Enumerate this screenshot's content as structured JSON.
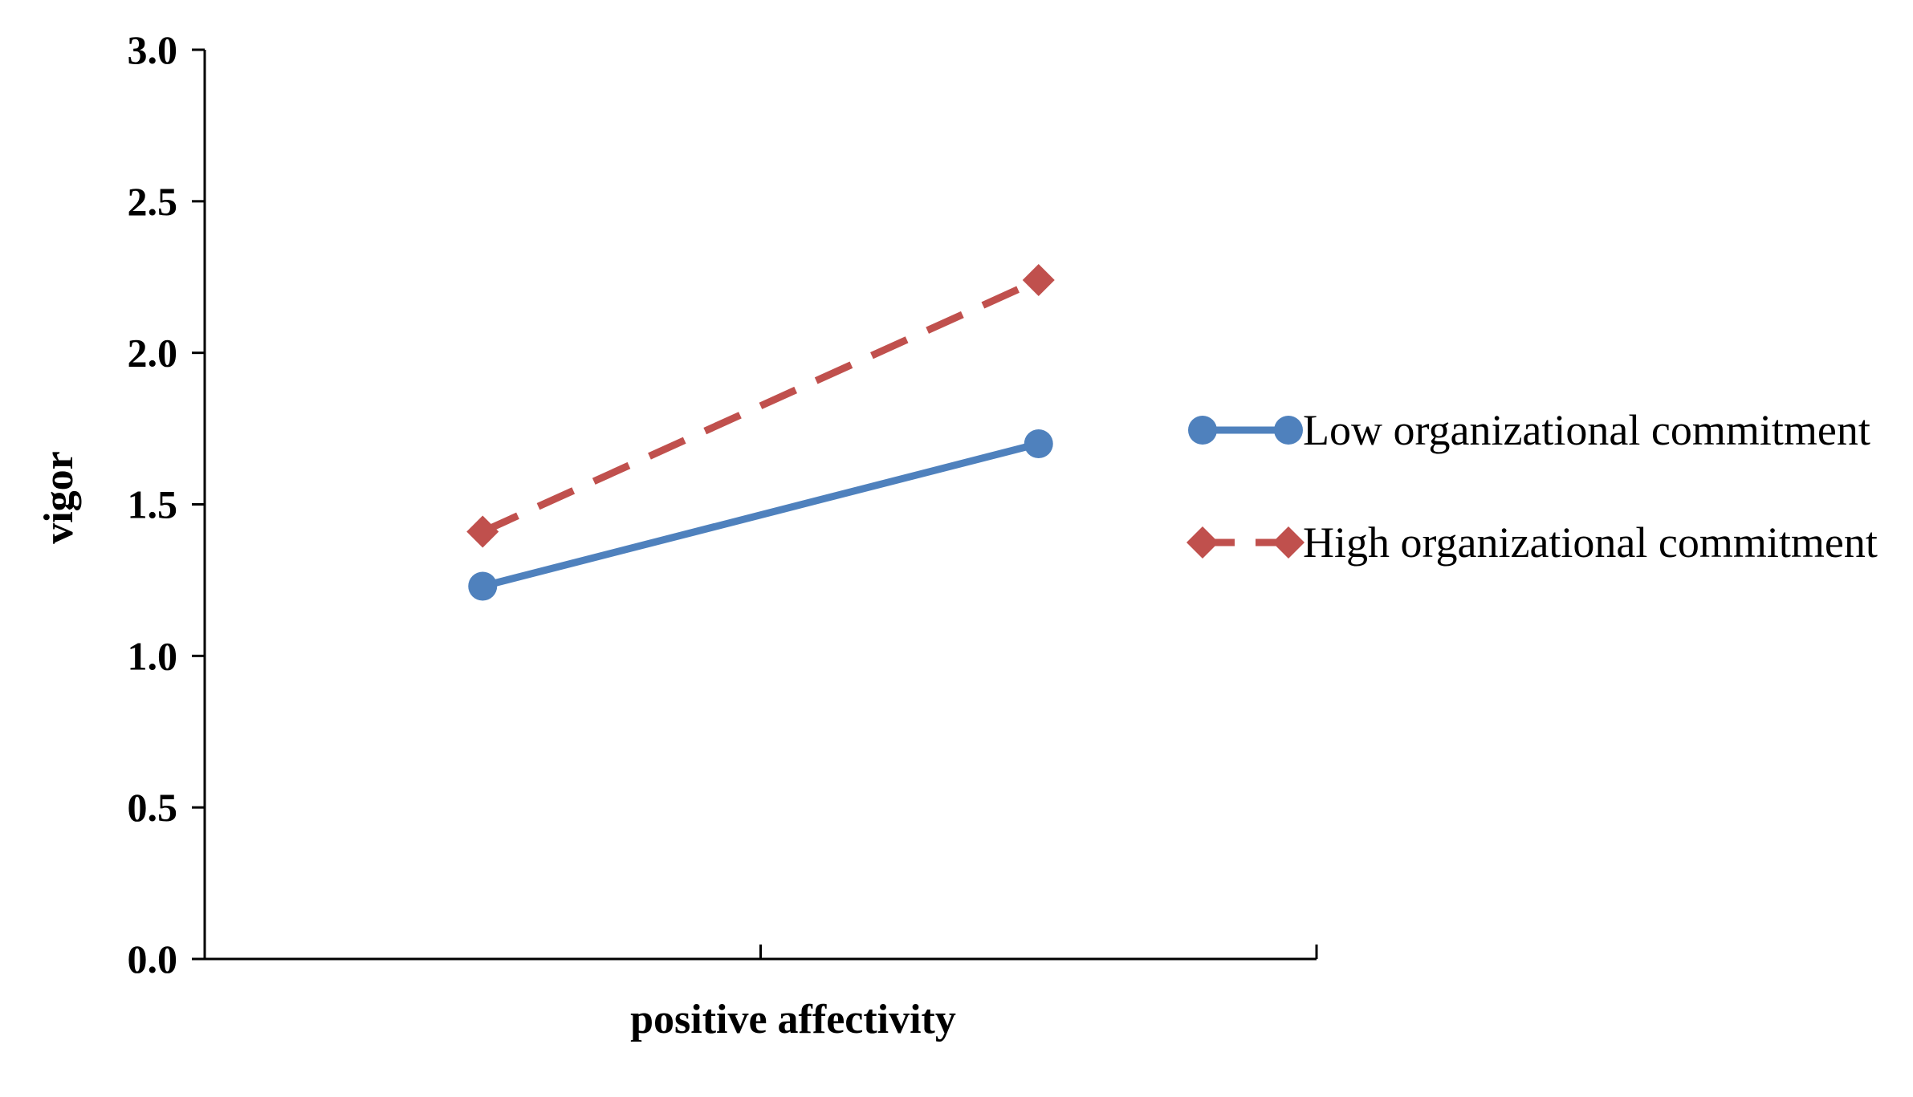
{
  "chart_data": {
    "type": "line",
    "title": "",
    "xlabel": "positive affectivity",
    "ylabel": "vigor",
    "ylim": [
      0,
      3
    ],
    "yticks": [
      "0.0",
      "0.5",
      "1.0",
      "1.5",
      "2.0",
      "2.5",
      "3.0"
    ],
    "ytick_values": [
      0,
      0.5,
      1.0,
      1.5,
      2.0,
      2.5,
      3.0
    ],
    "x_positions": [
      0.25,
      0.75
    ],
    "grid": false,
    "legend_position": "right",
    "series": [
      {
        "name": "Low organizational commitment",
        "values": [
          1.23,
          1.7
        ],
        "color": "#4f81bd",
        "marker": "circle",
        "line_style": "solid"
      },
      {
        "name": "High organizational commitment",
        "values": [
          1.41,
          2.24
        ],
        "color": "#c0504d",
        "marker": "diamond",
        "line_style": "dashed"
      }
    ]
  }
}
